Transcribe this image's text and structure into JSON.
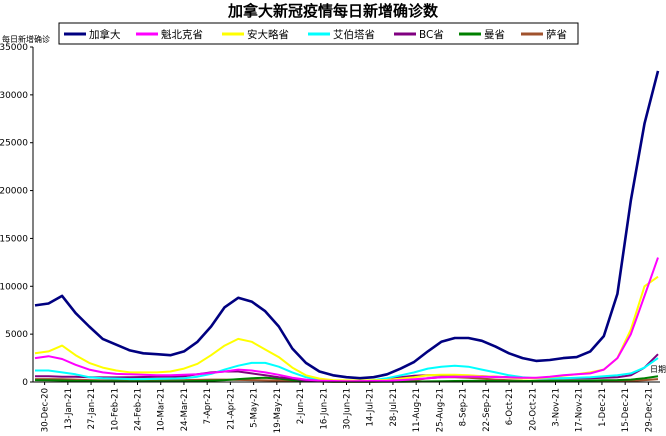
{
  "chart_data": {
    "type": "line",
    "title": "加拿大新冠疫情每日新增确诊数",
    "ylabel": "每日新增确诊",
    "xlabel": "日期",
    "ylim": [
      0,
      35000
    ],
    "yticks": [
      0,
      5000,
      10000,
      15000,
      20000,
      25000,
      30000,
      35000
    ],
    "x_tick_labels": [
      "30-Dec-20",
      "13-Jan-21",
      "27-Jan-21",
      "10-Feb-21",
      "24-Feb-21",
      "10-Mar-21",
      "24-Mar-21",
      "7-Apr-21",
      "21-Apr-21",
      "5-May-21",
      "19-May-21",
      "2-Jun-21",
      "16-Jun-21",
      "30-Jun-21",
      "14-Jul-21",
      "28-Jul-21",
      "11-Aug-21",
      "25-Aug-21",
      "8-Sep-21",
      "22-Sep-21",
      "6-Oct-21",
      "20-Oct-21",
      "3-Nov-21",
      "17-Nov-21",
      "1-Dec-21",
      "15-Dec-21",
      "29-Dec-21"
    ],
    "legend_position": "top",
    "grid": false,
    "series": [
      {
        "name": "加拿大",
        "color": "#000080",
        "values": [
          8000,
          8200,
          9000,
          7200,
          5800,
          4500,
          3900,
          3300,
          3000,
          2900,
          2800,
          3200,
          4200,
          5800,
          7800,
          8800,
          8400,
          7400,
          5800,
          3500,
          2000,
          1100,
          700,
          500,
          400,
          500,
          800,
          1400,
          2100,
          3200,
          4200,
          4600,
          4600,
          4300,
          3700,
          3000,
          2500,
          2200,
          2300,
          2500,
          2600,
          3200,
          4800,
          9200,
          19000,
          27000,
          32500
        ]
      },
      {
        "name": "魁北克省",
        "color": "#FF00FF",
        "values": [
          2500,
          2700,
          2400,
          1800,
          1300,
          1000,
          850,
          800,
          750,
          700,
          700,
          750,
          800,
          950,
          1100,
          1300,
          1200,
          1000,
          750,
          450,
          250,
          150,
          100,
          80,
          90,
          100,
          130,
          200,
          280,
          400,
          500,
          550,
          560,
          550,
          520,
          480,
          450,
          450,
          550,
          700,
          800,
          900,
          1300,
          2500,
          5000,
          9000,
          13000
        ]
      },
      {
        "name": "安大略省",
        "color": "#FFFF00",
        "values": [
          3000,
          3200,
          3800,
          2800,
          2000,
          1500,
          1200,
          1000,
          1000,
          1000,
          1100,
          1400,
          1900,
          2800,
          3800,
          4500,
          4200,
          3400,
          2600,
          1500,
          700,
          350,
          200,
          170,
          160,
          180,
          220,
          350,
          500,
          700,
          750,
          750,
          700,
          620,
          550,
          450,
          370,
          400,
          500,
          650,
          800,
          1000,
          1300,
          2500,
          5500,
          10000,
          11000
        ]
      },
      {
        "name": "艾伯塔省",
        "color": "#00FFFF",
        "values": [
          1200,
          1200,
          1000,
          800,
          500,
          400,
          350,
          300,
          300,
          320,
          350,
          400,
          550,
          850,
          1300,
          1700,
          2000,
          2000,
          1600,
          1000,
          500,
          200,
          100,
          80,
          100,
          200,
          400,
          700,
          1000,
          1400,
          1600,
          1700,
          1600,
          1300,
          1000,
          700,
          500,
          400,
          400,
          400,
          450,
          500,
          600,
          700,
          900,
          1500,
          2500
        ]
      },
      {
        "name": "BC省",
        "color": "#800080",
        "values": [
          600,
          600,
          550,
          550,
          500,
          480,
          480,
          500,
          520,
          550,
          560,
          600,
          800,
          1000,
          1100,
          1100,
          900,
          700,
          500,
          350,
          150,
          100,
          70,
          50,
          80,
          150,
          300,
          500,
          650,
          700,
          700,
          700,
          650,
          600,
          550,
          500,
          450,
          400,
          400,
          380,
          380,
          400,
          450,
          500,
          700,
          1500,
          2900
        ]
      },
      {
        "name": "曼省",
        "color": "#008000",
        "values": [
          200,
          180,
          160,
          120,
          100,
          80,
          70,
          60,
          60,
          60,
          60,
          70,
          100,
          150,
          200,
          300,
          400,
          450,
          350,
          200,
          100,
          50,
          30,
          20,
          20,
          20,
          20,
          30,
          40,
          60,
          80,
          100,
          110,
          110,
          100,
          90,
          90,
          120,
          150,
          150,
          150,
          160,
          180,
          200,
          250,
          400,
          600
        ]
      },
      {
        "name": "萨省",
        "color": "#A0522D",
        "values": [
          300,
          300,
          280,
          250,
          200,
          170,
          160,
          150,
          160,
          170,
          180,
          200,
          220,
          250,
          250,
          220,
          200,
          170,
          150,
          100,
          70,
          50,
          30,
          20,
          20,
          30,
          60,
          100,
          200,
          400,
          500,
          500,
          450,
          350,
          250,
          180,
          120,
          100,
          80,
          70,
          70,
          70,
          80,
          100,
          120,
          200,
          300
        ]
      }
    ]
  }
}
